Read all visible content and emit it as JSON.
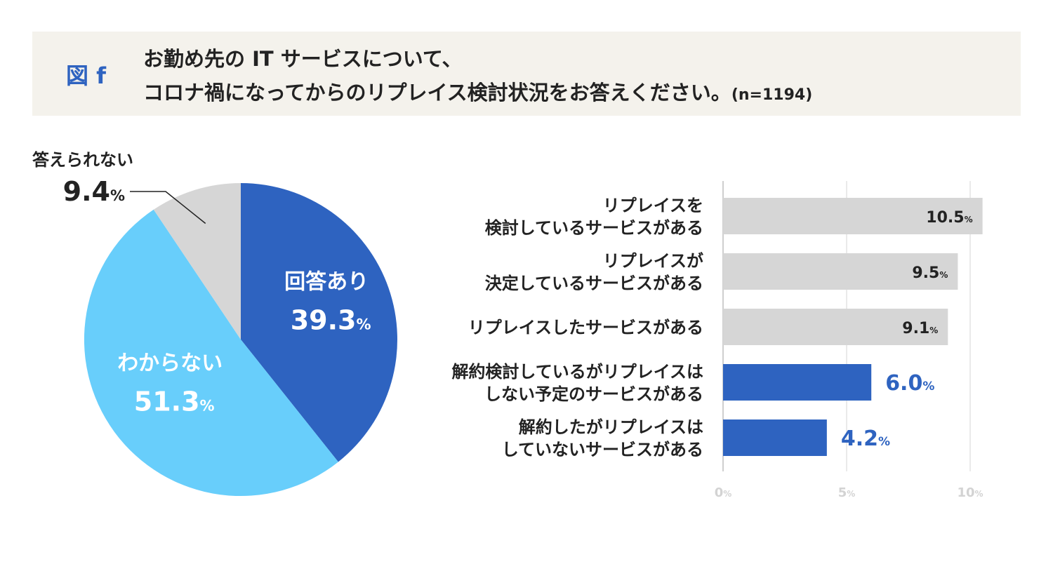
{
  "header": {
    "fig_label": "図 f",
    "title_line1": "お勤め先の IT サービスについて、",
    "title_line2": "コロナ禍になってからのリプレイス検討状況をお答えください。",
    "sample_size": "(n=1194)"
  },
  "colors": {
    "dark_blue": "#2e63c0",
    "light_blue": "#68cefb",
    "gray": "#d6d6d6",
    "header_bg": "#f4f2ec"
  },
  "chart_data": [
    {
      "type": "pie",
      "slices": [
        {
          "label": "回答あり",
          "value": 39.3,
          "color": "#2e63c0",
          "value_text": "39.3",
          "unit": "%"
        },
        {
          "label": "わからない",
          "value": 51.3,
          "color": "#68cefb",
          "value_text": "51.3",
          "unit": "%"
        },
        {
          "label": "答えられない",
          "value": 9.4,
          "color": "#d6d6d6",
          "value_text": "9.4",
          "unit": "%"
        }
      ]
    },
    {
      "type": "bar",
      "orientation": "horizontal",
      "categories": [
        [
          "リプレイスを",
          "検討しているサービスがある"
        ],
        [
          "リプレイスが",
          "決定しているサービスがある"
        ],
        [
          "リプレイスしたサービスがある"
        ],
        [
          "解約検討しているがリプレイスは",
          "しない予定のサービスがある"
        ],
        [
          "解約したがリプレイスは",
          "していないサービスがある"
        ]
      ],
      "values": [
        10.5,
        9.5,
        9.1,
        6.0,
        4.2
      ],
      "value_labels": [
        "10.5",
        "9.5",
        "9.1",
        "6.0",
        "4.2"
      ],
      "bar_colors": [
        "#d6d6d6",
        "#d6d6d6",
        "#d6d6d6",
        "#2e63c0",
        "#2e63c0"
      ],
      "xlim": [
        0,
        10
      ],
      "x_ticks": [
        "0",
        "5",
        "10"
      ],
      "unit": "%",
      "grid": true
    }
  ]
}
